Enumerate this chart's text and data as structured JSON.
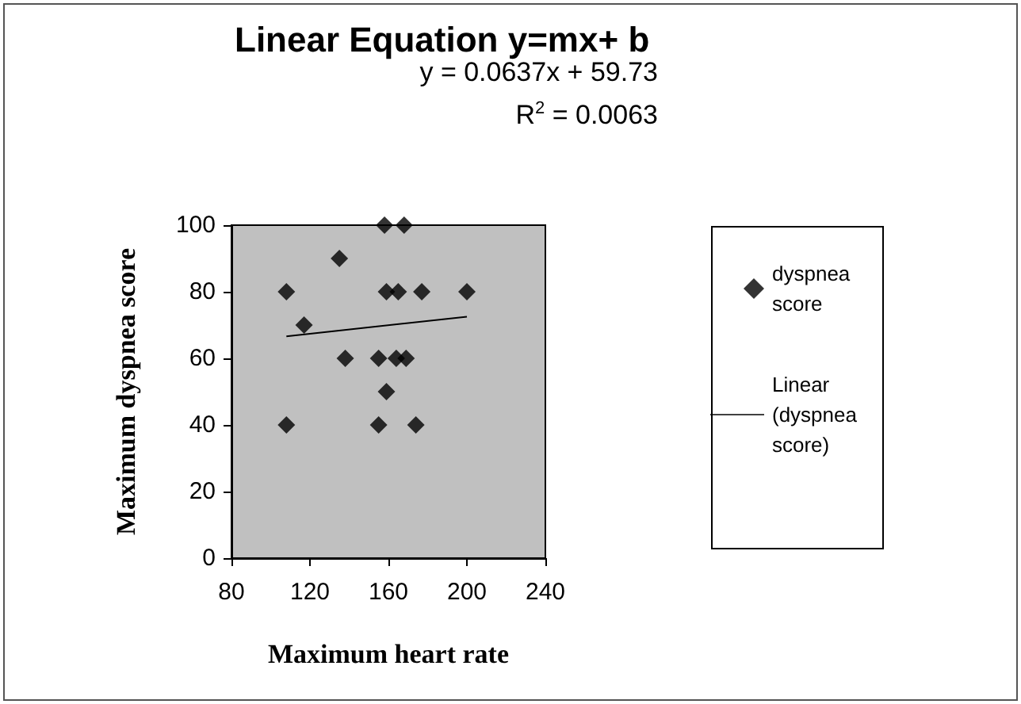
{
  "chart_data": {
    "type": "scatter",
    "title": "Linear Equation y=mx+ b",
    "xlabel": "Maximum heart rate",
    "ylabel": "Maximum dyspnea score",
    "annotations": [
      "y = 0.0637x + 59.73",
      "R$^{2}$ = 0.0063"
    ],
    "series": [
      {
        "name": "dyspnea score",
        "color": "#000000",
        "marker": "diamond",
        "x": [
          108,
          108,
          117,
          135,
          138,
          155,
          155,
          158,
          159,
          159,
          168,
          165,
          164,
          169,
          174,
          177,
          200
        ],
        "values": [
          80,
          40,
          70,
          90,
          60,
          60,
          40,
          100,
          80,
          50,
          100,
          80,
          60,
          60,
          40,
          80,
          80
        ]
      },
      {
        "name": "Linear (dyspnea score)",
        "type": "line",
        "color": "#000000",
        "marker": "none",
        "line_style": "solid",
        "x": [
          108,
          200
        ],
        "values": [
          66.6,
          72.5
        ]
      }
    ],
    "xlim": [
      80,
      240
    ],
    "xticks": [
      80,
      120,
      160,
      200,
      240
    ],
    "ylim": [
      0,
      100
    ],
    "yticks": [
      0,
      20,
      40,
      60,
      80,
      100
    ],
    "grid": false,
    "legend": "right"
  }
}
